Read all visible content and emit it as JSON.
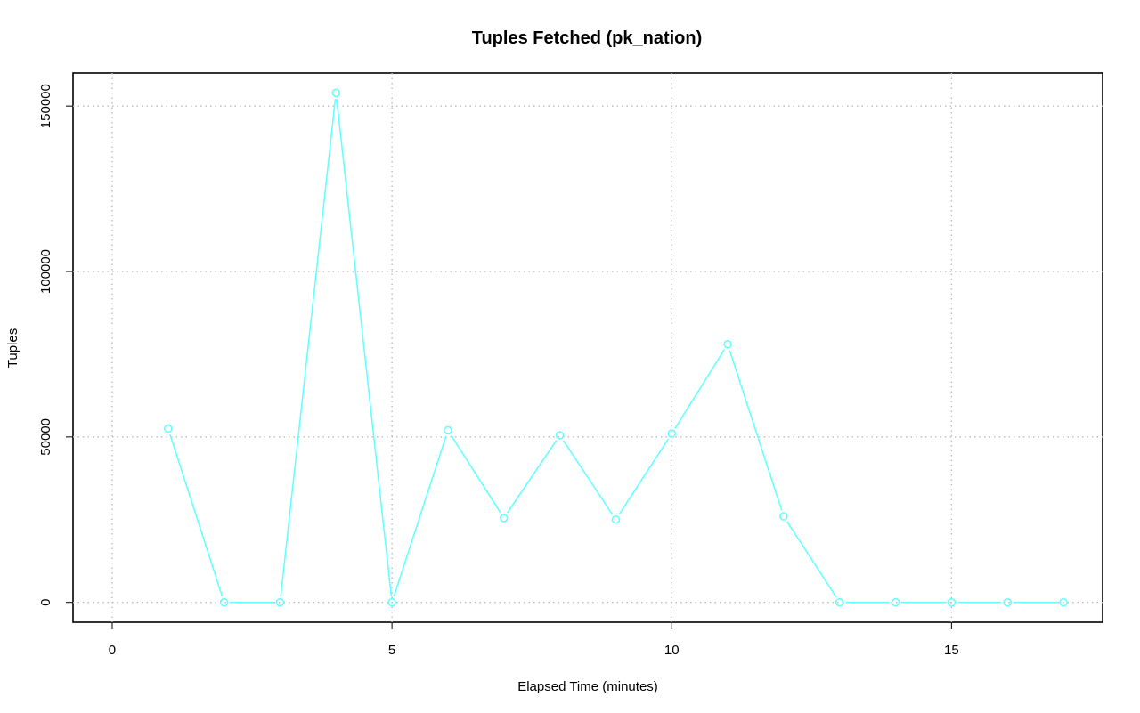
{
  "chart_data": {
    "type": "line",
    "title": "Tuples Fetched (pk_nation)",
    "xlabel": "Elapsed Time (minutes)",
    "ylabel": "Tuples",
    "xlim": [
      -0.7,
      17.7
    ],
    "ylim": [
      -6000,
      160000
    ],
    "x_ticks": [
      0,
      5,
      10,
      15
    ],
    "y_ticks": [
      0,
      50000,
      100000,
      150000
    ],
    "grid": true,
    "series": [
      {
        "color": "#66ffff",
        "x": [
          1,
          2,
          3,
          4,
          5,
          6,
          7,
          8,
          9,
          10,
          11,
          12,
          13,
          14,
          15,
          16,
          17
        ],
        "values": [
          52500,
          0,
          0,
          154000,
          0,
          52000,
          25500,
          50500,
          25000,
          51000,
          78000,
          26000,
          0,
          0,
          0,
          0,
          0
        ]
      }
    ]
  }
}
